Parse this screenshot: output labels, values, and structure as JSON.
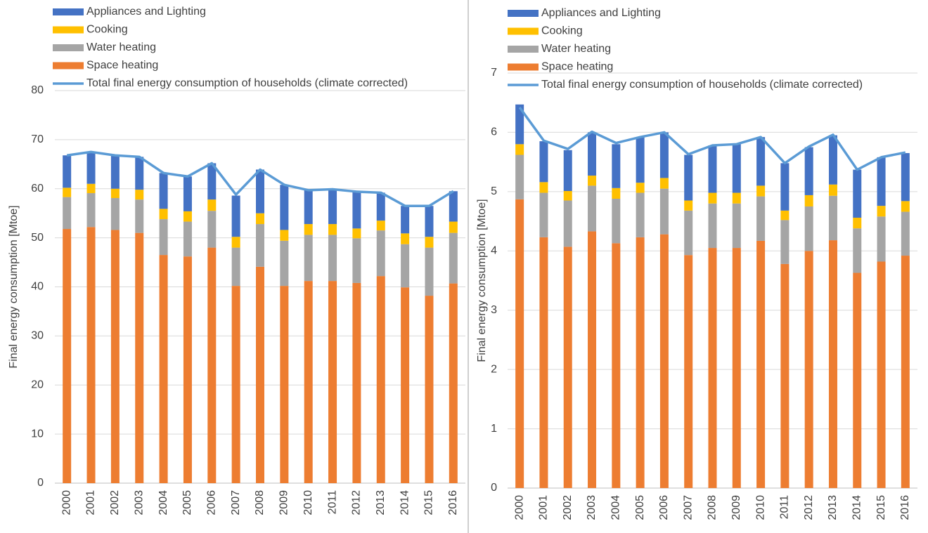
{
  "chart_data": [
    {
      "type": "bar",
      "stacked": true,
      "y_label": "Final energy consumption [Mtoe]",
      "categories": [
        "2000",
        "2001",
        "2002",
        "2003",
        "2004",
        "2005",
        "2006",
        "2007",
        "2008",
        "2009",
        "2010",
        "2011",
        "2012",
        "2013",
        "2014",
        "2015",
        "2016"
      ],
      "series": [
        {
          "name": "Appliances and Lighting",
          "color": "#4472c4",
          "values": [
            6.6,
            6.5,
            6.8,
            6.7,
            7.3,
            7.1,
            7.4,
            8.4,
            8.9,
            9.2,
            6.9,
            7.1,
            7.5,
            5.7,
            5.6,
            6.3,
            6.2
          ]
        },
        {
          "name": "Cooking",
          "color": "#ffc000",
          "values": [
            1.9,
            1.9,
            1.9,
            2.0,
            2.1,
            2.1,
            2.3,
            2.2,
            2.2,
            2.2,
            2.2,
            2.2,
            2.0,
            2.0,
            2.2,
            2.2,
            2.3
          ]
        },
        {
          "name": "Water heating",
          "color": "#a5a5a5",
          "values": [
            6.5,
            6.9,
            6.5,
            6.8,
            7.3,
            7.1,
            7.5,
            7.8,
            8.7,
            9.2,
            9.4,
            9.4,
            9.1,
            9.3,
            8.8,
            9.8,
            10.3
          ]
        },
        {
          "name": "Space heating",
          "color": "#ed7d31",
          "values": [
            51.8,
            52.2,
            51.6,
            51.0,
            46.5,
            46.2,
            48.0,
            40.2,
            44.1,
            40.2,
            41.2,
            41.2,
            40.8,
            42.2,
            39.9,
            38.2,
            40.7
          ]
        },
        {
          "name": "Total final energy consumption of households (climate corrected)",
          "type": "line",
          "color": "#5b9bd5",
          "values": [
            66.8,
            67.5,
            66.8,
            66.5,
            63.2,
            62.5,
            65.2,
            58.8,
            63.9,
            60.8,
            59.7,
            59.9,
            59.4,
            59.2,
            56.5,
            56.5,
            59.5
          ]
        }
      ],
      "ylim": [
        0,
        80
      ],
      "yticks": [
        0,
        10,
        20,
        30,
        40,
        50,
        60,
        70,
        80
      ],
      "grid": true
    },
    {
      "type": "bar",
      "stacked": true,
      "y_label": "Final energy consumption [Mtoe]",
      "categories": [
        "2000",
        "2001",
        "2002",
        "2003",
        "2004",
        "2005",
        "2006",
        "2007",
        "2008",
        "2009",
        "2010",
        "2011",
        "2012",
        "2013",
        "2014",
        "2015",
        "2016"
      ],
      "series": [
        {
          "name": "Appliances and Lighting",
          "color": "#4472c4",
          "values": [
            0.67,
            0.69,
            0.69,
            0.73,
            0.74,
            0.77,
            0.77,
            0.77,
            0.8,
            0.82,
            0.82,
            0.8,
            0.81,
            0.83,
            0.81,
            0.82,
            0.81
          ]
        },
        {
          "name": "Cooking",
          "color": "#ffc000",
          "values": [
            0.18,
            0.18,
            0.16,
            0.17,
            0.18,
            0.17,
            0.18,
            0.17,
            0.18,
            0.18,
            0.18,
            0.16,
            0.19,
            0.19,
            0.18,
            0.18,
            0.18
          ]
        },
        {
          "name": "Water heating",
          "color": "#a5a5a5",
          "values": [
            0.75,
            0.75,
            0.78,
            0.77,
            0.75,
            0.75,
            0.77,
            0.75,
            0.75,
            0.75,
            0.75,
            0.74,
            0.75,
            0.75,
            0.75,
            0.76,
            0.74
          ]
        },
        {
          "name": "Space heating",
          "color": "#ed7d31",
          "values": [
            4.87,
            4.23,
            4.07,
            4.33,
            4.13,
            4.23,
            4.28,
            3.93,
            4.05,
            4.05,
            4.17,
            3.78,
            4.0,
            4.18,
            3.63,
            3.82,
            3.92
          ]
        },
        {
          "name": "Total final energy consumption of households (climate corrected)",
          "type": "line",
          "color": "#5b9bd5",
          "values": [
            6.42,
            5.86,
            5.72,
            6.01,
            5.82,
            5.92,
            6.0,
            5.63,
            5.78,
            5.8,
            5.92,
            5.48,
            5.76,
            5.96,
            5.37,
            5.58,
            5.66
          ]
        }
      ],
      "ylim": [
        0,
        7
      ],
      "yticks": [
        0,
        1,
        2,
        3,
        4,
        5,
        6,
        7
      ],
      "grid": true
    }
  ]
}
